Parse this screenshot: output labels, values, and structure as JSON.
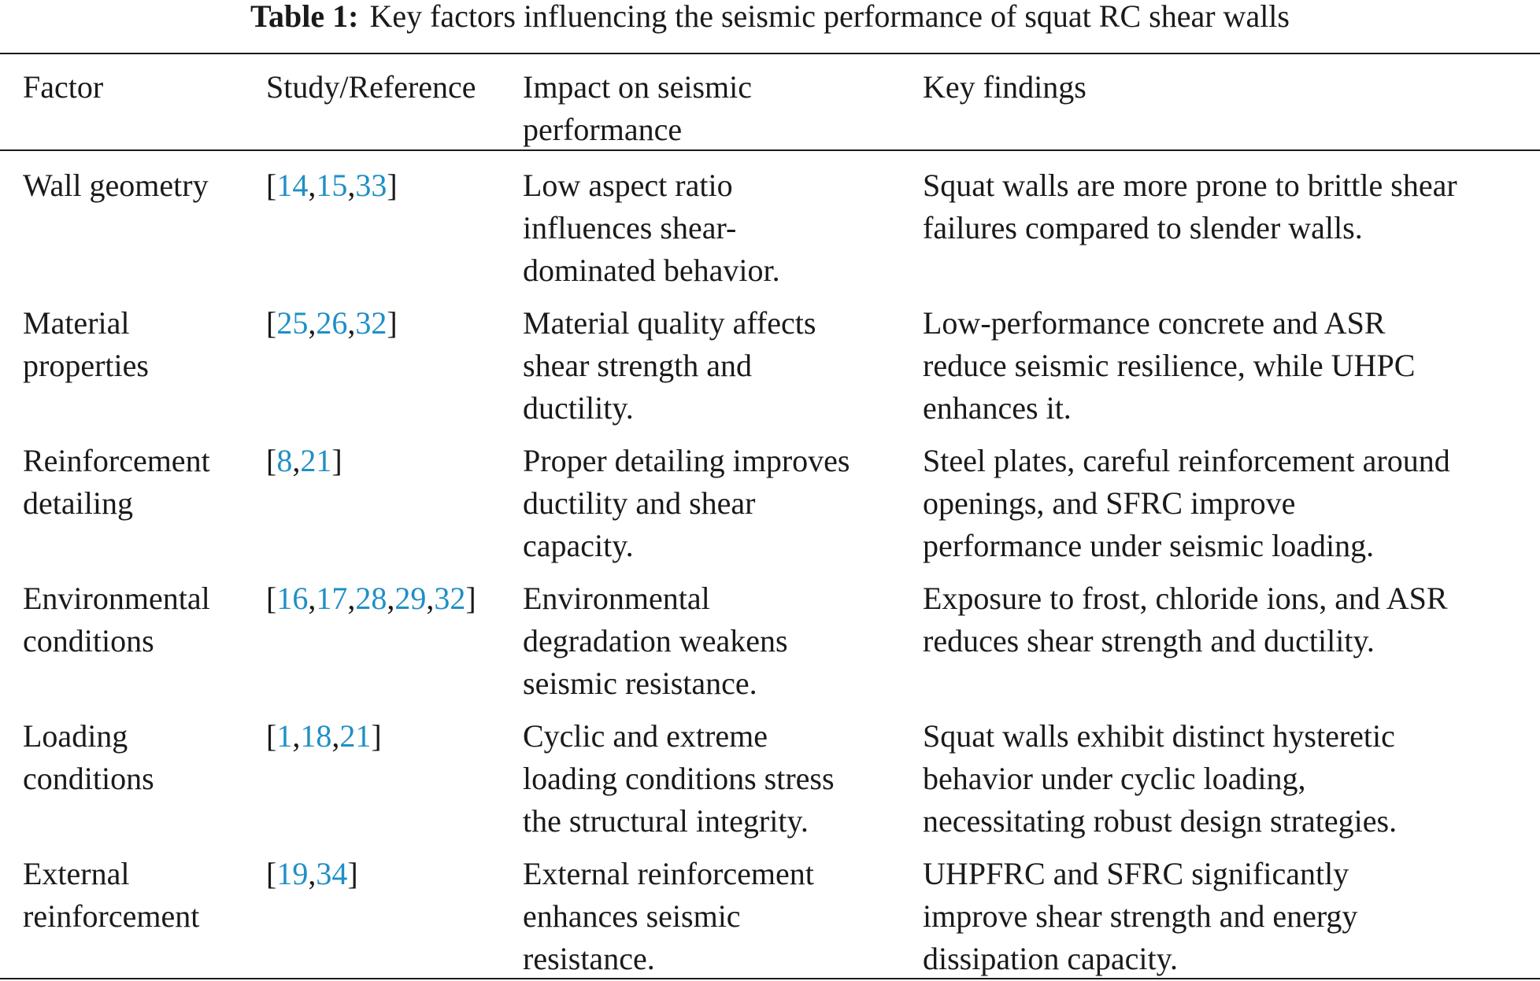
{
  "caption": {
    "label": "Table 1:",
    "text": "Key factors influencing the seismic performance of squat RC shear walls"
  },
  "headers": {
    "factor": [
      "Factor"
    ],
    "reference": [
      "Study/Reference"
    ],
    "impact": [
      "Impact on seismic",
      "performance"
    ],
    "findings": [
      "Key findings"
    ]
  },
  "rows": [
    {
      "factor": [
        "Wall geometry"
      ],
      "refs": [
        "14",
        "15",
        "33"
      ],
      "impact": [
        "Low aspect ratio",
        "influences shear-",
        "dominated behavior."
      ],
      "findings": [
        "Squat walls are more prone to brittle shear",
        "failures compared to slender walls."
      ]
    },
    {
      "factor": [
        "Material",
        "properties"
      ],
      "refs": [
        "25",
        "26",
        "32"
      ],
      "impact": [
        "Material quality affects",
        "shear strength and",
        "ductility."
      ],
      "findings": [
        "Low-performance concrete and ASR",
        "reduce seismic resilience, while UHPC",
        "enhances it."
      ]
    },
    {
      "factor": [
        "Reinforcement",
        "detailing"
      ],
      "refs": [
        "8",
        "21"
      ],
      "impact": [
        "Proper detailing improves",
        "ductility and shear",
        "capacity."
      ],
      "findings": [
        "Steel plates, careful reinforcement around",
        "openings, and SFRC improve",
        "performance under seismic loading."
      ]
    },
    {
      "factor": [
        "Environmental",
        "conditions"
      ],
      "refs": [
        "16",
        "17",
        "28",
        "29",
        "32"
      ],
      "impact": [
        "Environmental",
        "degradation weakens",
        "seismic resistance."
      ],
      "findings": [
        "Exposure to frost, chloride ions, and ASR",
        "reduces shear strength and ductility."
      ]
    },
    {
      "factor": [
        "Loading",
        "conditions"
      ],
      "refs": [
        "1",
        "18",
        "21"
      ],
      "impact": [
        "Cyclic and extreme",
        "loading conditions stress",
        "the structural integrity."
      ],
      "findings": [
        "Squat walls exhibit distinct hysteretic",
        "behavior under cyclic loading,",
        "necessitating robust design strategies."
      ]
    },
    {
      "factor": [
        "External",
        "reinforcement"
      ],
      "refs": [
        "19",
        "34"
      ],
      "impact": [
        "External reinforcement",
        "enhances seismic",
        "resistance."
      ],
      "findings": [
        "UHPFRC and SFRC significantly",
        "improve shear strength and energy",
        "dissipation capacity."
      ]
    }
  ],
  "colors": {
    "text": "#1a1a1a",
    "reference_link": "#1f8fc6"
  }
}
